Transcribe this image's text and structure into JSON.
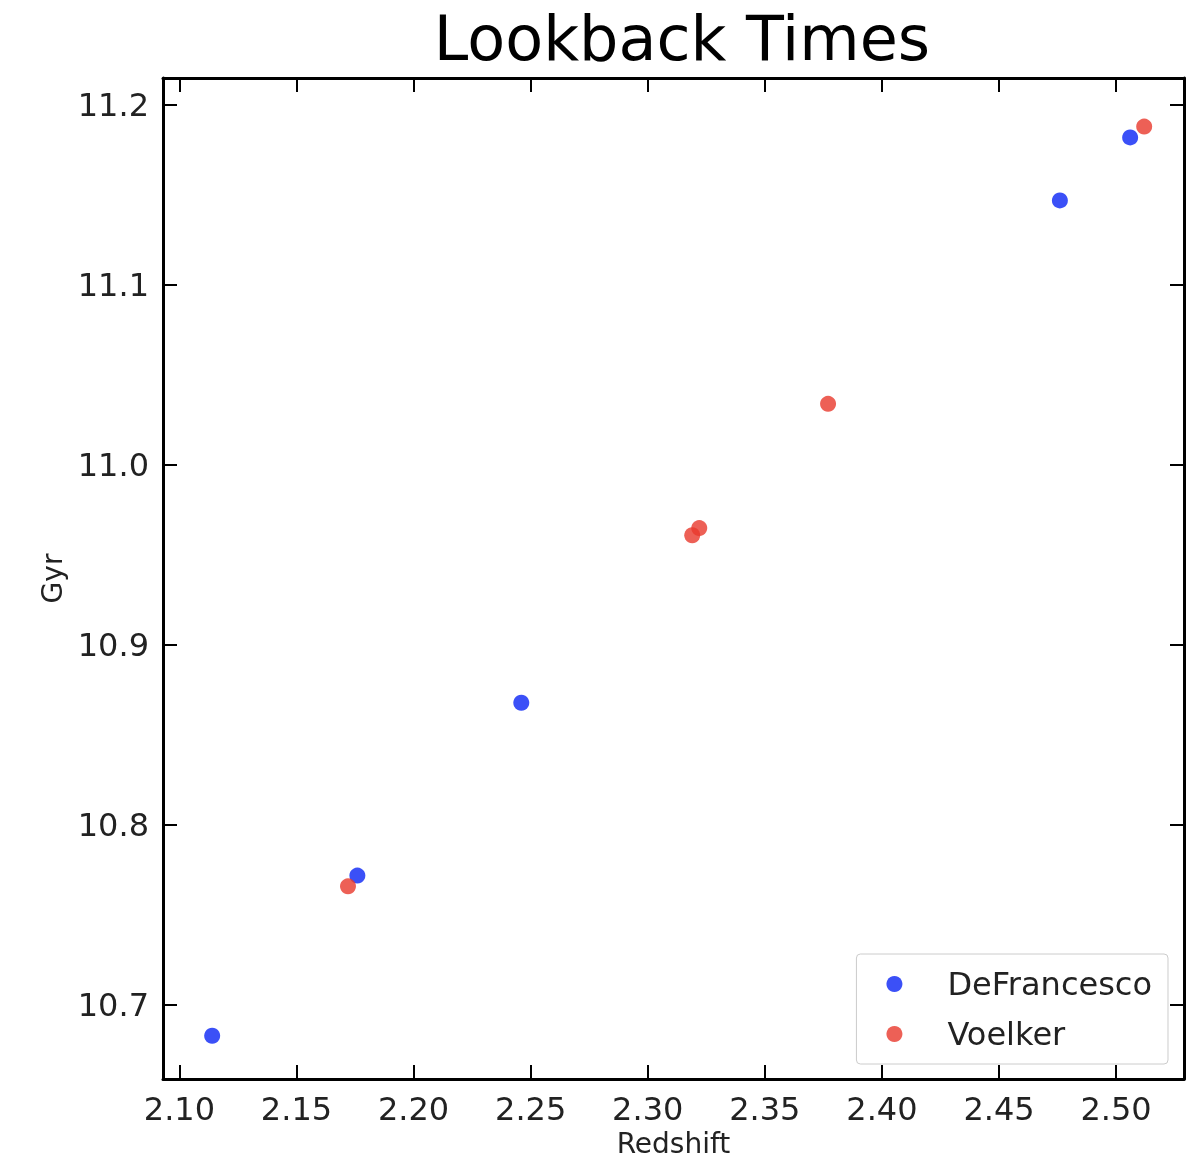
{
  "chart_data": {
    "type": "scatter",
    "title": "Lookback Times",
    "xlabel": "Redshift",
    "ylabel": "Gyr",
    "series": [
      {
        "name": "DeFrancesco",
        "color": "#0a24f5",
        "x": [
          2.114,
          2.176,
          2.246,
          2.476,
          2.506
        ],
        "values": [
          10.683,
          10.772,
          10.868,
          11.147,
          11.182
        ]
      },
      {
        "name": "Voelker",
        "color": "#e8382c",
        "x": [
          2.172,
          2.319,
          2.322,
          2.377,
          2.512
        ],
        "values": [
          10.766,
          10.961,
          10.965,
          11.034,
          11.188
        ]
      }
    ],
    "xlim": [
      2.093,
      2.529
    ],
    "xticks": [
      {
        "value": 2.1,
        "label": "2.10"
      },
      {
        "value": 2.15,
        "label": "2.15"
      },
      {
        "value": 2.2,
        "label": "2.20"
      },
      {
        "value": 2.25,
        "label": "2.25"
      },
      {
        "value": 2.3,
        "label": "2.30"
      },
      {
        "value": 2.35,
        "label": "2.35"
      },
      {
        "value": 2.4,
        "label": "2.40"
      },
      {
        "value": 2.45,
        "label": "2.45"
      },
      {
        "value": 2.5,
        "label": "2.50"
      }
    ],
    "ylim": [
      10.659,
      11.215
    ],
    "yticks": [
      10.7,
      10.8,
      10.9,
      {
        "value": 11.0,
        "label": "11.0"
      },
      11.1,
      11.2
    ],
    "grid": false,
    "legend": "bottom right",
    "marker": "circle"
  }
}
